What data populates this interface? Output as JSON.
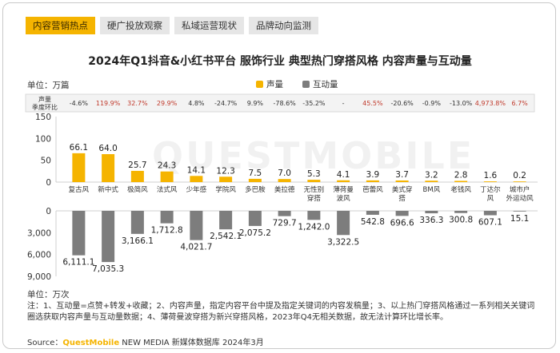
{
  "tabs": [
    {
      "label": "内容营销热点",
      "active": true
    },
    {
      "label": "硬广投放观察",
      "active": false
    },
    {
      "label": "私域运营现状",
      "active": false
    },
    {
      "label": "品牌动向监测",
      "active": false
    }
  ],
  "watermark": "QUESTMOBILE",
  "colors": {
    "accent": "#f5b400",
    "interaction": "#7d7d7d",
    "growth_positive": "#c0392b",
    "growth_other": "#333333"
  },
  "notes": "注：1、互动量=点赞+转发+收藏；2、内容声量，指定内容平台中提及指定关键词的内容发稿量；3、以上热门穿搭风格通过一系列相关关键词圈选获取内容声量与互动量数据；4、薄荷曼波穿搭为新兴穿搭风格，2023年Q4无相关数据，故无法计算环比增长率。",
  "source": {
    "prefix": "Source：",
    "brand": "QuestMobile",
    "suffix": " NEW MEDIA 新媒体数据库 2024年3月"
  },
  "chart_data": {
    "type": "bar",
    "title": "2024年Q1抖音&小红书平台 服饰行业 典型热门穿搭风格 内容声量与互动量",
    "categories": [
      "复古风",
      "新中式",
      "极简风",
      "法式风",
      "少年感",
      "学院风",
      "多巴胺",
      "美拉德",
      "无性别穿搭",
      "薄荷曼波风",
      "芭蕾风",
      "美式穿搭",
      "BM风",
      "老钱风",
      "丁达尔风",
      "城市户外运动风"
    ],
    "series": [
      {
        "name": "声量",
        "color": "#f5b400",
        "unit": "万篇",
        "values": [
          66.1,
          64.0,
          25.7,
          24.3,
          14.1,
          12.3,
          7.5,
          7.0,
          5.3,
          4.1,
          3.9,
          3.7,
          3.2,
          2.8,
          1.6,
          0.2
        ],
        "labels": [
          "66.1",
          "64.0",
          "25.7",
          "24.3",
          "14.1",
          "12.3",
          "7.5",
          "7.0",
          "5.3",
          "4.1",
          "3.9",
          "3.7",
          "3.2",
          "2.8",
          "1.6",
          "0.2"
        ]
      },
      {
        "name": "互动量",
        "color": "#7d7d7d",
        "unit": "万次",
        "values": [
          6111.1,
          7035.3,
          3166.1,
          1712.8,
          4021.7,
          2542.1,
          2075.2,
          729.7,
          1242.0,
          3322.5,
          542.8,
          696.6,
          336.3,
          300.8,
          607.1,
          15.1
        ],
        "labels": [
          "6,111.1",
          "7,035.3",
          "3,166.1",
          "1,712.8",
          "4,021.7",
          "2,542.1",
          "2,075.2",
          "729.7",
          "1,242.0",
          "3,322.5",
          "542.8",
          "696.6",
          "336.3",
          "300.8",
          "607.1",
          "15.1"
        ]
      }
    ],
    "growth": {
      "label": "声量季度环比",
      "values": [
        "-4.6%",
        "119.9%",
        "32.7%",
        "29.9%",
        "4.8%",
        "-24.7%",
        "9.9%",
        "-78.6%",
        "-35.2%",
        "-",
        "45.5%",
        "-20.6%",
        "-0.9%",
        "-13.0%",
        "4,973.8%",
        "6.7%"
      ],
      "highlight": [
        false,
        true,
        true,
        true,
        false,
        false,
        false,
        false,
        false,
        false,
        true,
        false,
        false,
        false,
        true,
        true
      ]
    },
    "top_axis": {
      "unit_label": "单位：万篇",
      "ticks": [
        "150",
        "100",
        "50",
        "0"
      ],
      "ylim": [
        0,
        150
      ]
    },
    "bottom_axis": {
      "unit_label": "单位：万次",
      "ticks": [
        "0",
        "3,000",
        "6,000",
        "9,000"
      ],
      "ylim": [
        0,
        9000
      ]
    }
  }
}
